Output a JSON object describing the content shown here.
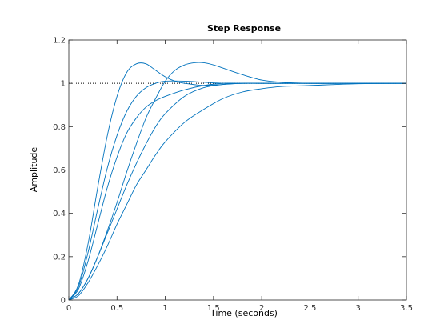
{
  "chart_data": {
    "type": "line",
    "title": "Step Response",
    "xlabel": "Time (seconds)",
    "ylabel": "Amplitude",
    "xlim": [
      0,
      3.5
    ],
    "ylim": [
      0,
      1.2
    ],
    "xticks": [
      "0",
      "0.5",
      "1",
      "1.5",
      "2",
      "2.5",
      "3",
      "3.5"
    ],
    "yticks": [
      "0",
      "0.2",
      "0.4",
      "0.6",
      "0.8",
      "1",
      "1.2"
    ],
    "grid": false,
    "line_color": "#0072BD",
    "reference_line": {
      "y": 1,
      "style": "dotted",
      "color": "#000000"
    },
    "series": [
      {
        "x": [
          0,
          0.1,
          0.2,
          0.3,
          0.4,
          0.5,
          0.6,
          0.7,
          0.8,
          0.9,
          1.0,
          1.1,
          1.2,
          1.4,
          1.6,
          1.8,
          2.0,
          2.5,
          3.0,
          3.5
        ],
        "y": [
          0,
          0.07,
          0.26,
          0.52,
          0.76,
          0.94,
          1.05,
          1.09,
          1.09,
          1.06,
          1.03,
          1.01,
          1.0,
          0.99,
          0.995,
          1.0,
          1.0,
          1.0,
          1.0,
          1.0
        ]
      },
      {
        "x": [
          0,
          0.1,
          0.2,
          0.3,
          0.4,
          0.5,
          0.6,
          0.7,
          0.8,
          0.9,
          1.0,
          1.2,
          1.4,
          1.6,
          1.8,
          2.0,
          2.5,
          3.0,
          3.5
        ],
        "y": [
          0,
          0.06,
          0.22,
          0.42,
          0.61,
          0.76,
          0.87,
          0.94,
          0.98,
          1.0,
          1.01,
          1.01,
          1.005,
          1.0,
          1.0,
          1.0,
          1.0,
          1.0,
          1.0
        ]
      },
      {
        "x": [
          0,
          0.1,
          0.2,
          0.3,
          0.4,
          0.5,
          0.6,
          0.7,
          0.8,
          0.9,
          1.0,
          1.2,
          1.4,
          1.6,
          1.8,
          2.0,
          2.5,
          3.0,
          3.5
        ],
        "y": [
          0,
          0.05,
          0.18,
          0.35,
          0.52,
          0.66,
          0.77,
          0.84,
          0.89,
          0.92,
          0.94,
          0.97,
          0.99,
          1.0,
          1.0,
          1.0,
          1.0,
          1.0,
          1.0
        ]
      },
      {
        "x": [
          0,
          0.1,
          0.2,
          0.3,
          0.4,
          0.5,
          0.6,
          0.7,
          0.8,
          0.9,
          1.0,
          1.1,
          1.2,
          1.3,
          1.4,
          1.5,
          1.6,
          1.8,
          2.0,
          2.2,
          2.5,
          3.0,
          3.5
        ],
        "y": [
          0,
          0.03,
          0.1,
          0.2,
          0.32,
          0.45,
          0.59,
          0.72,
          0.84,
          0.93,
          1.01,
          1.06,
          1.085,
          1.095,
          1.095,
          1.085,
          1.07,
          1.04,
          1.015,
          1.005,
          1.0,
          1.0,
          1.0
        ]
      },
      {
        "x": [
          0,
          0.1,
          0.2,
          0.3,
          0.4,
          0.5,
          0.6,
          0.7,
          0.8,
          0.9,
          1.0,
          1.2,
          1.4,
          1.6,
          1.8,
          2.0,
          2.5,
          3.0,
          3.5
        ],
        "y": [
          0,
          0.03,
          0.1,
          0.2,
          0.31,
          0.42,
          0.53,
          0.63,
          0.72,
          0.8,
          0.86,
          0.94,
          0.98,
          0.995,
          1.0,
          1.0,
          1.0,
          1.0,
          1.0
        ]
      },
      {
        "x": [
          0,
          0.1,
          0.2,
          0.3,
          0.4,
          0.5,
          0.6,
          0.7,
          0.8,
          0.9,
          1.0,
          1.2,
          1.4,
          1.6,
          1.8,
          2.0,
          2.2,
          2.5,
          3.0,
          3.5
        ],
        "y": [
          0,
          0.02,
          0.08,
          0.16,
          0.25,
          0.35,
          0.44,
          0.53,
          0.6,
          0.67,
          0.73,
          0.82,
          0.88,
          0.93,
          0.96,
          0.975,
          0.985,
          0.99,
          0.998,
          1.0
        ]
      }
    ]
  }
}
